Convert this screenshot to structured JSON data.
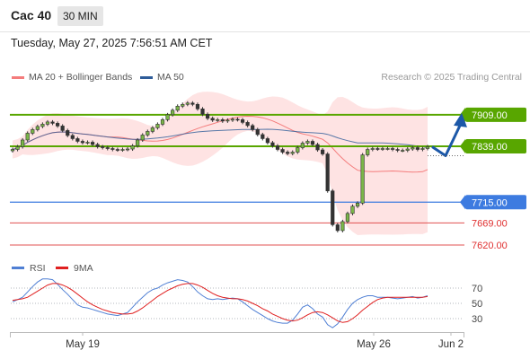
{
  "header": {
    "symbol": "Cac 40",
    "timeframe": "30 MIN"
  },
  "date_line": "Tuesday, May 27, 2025 7:56:51 AM CET",
  "legend": {
    "bb": {
      "label": "MA 20 + Bollinger Bands",
      "color": "#f47c7c"
    },
    "ma50": {
      "label": "MA 50",
      "color": "#2e5c99"
    },
    "credit": "Research © 2025 Trading Central"
  },
  "rsi_legend": {
    "rsi": {
      "label": "RSI",
      "color": "#4f7fd4"
    },
    "ma": {
      "label": "9MA",
      "color": "#e02020"
    }
  },
  "chart_data": [
    {
      "type": "line",
      "subtype": "candlestick",
      "x_labels": [
        "May 19",
        "May 26",
        "Jun 2"
      ],
      "price_levels": [
        {
          "value": 7909.0,
          "label": "7909.00",
          "style": "resistance",
          "color": "#58a600"
        },
        {
          "value": 7839.0,
          "label": "7839.00",
          "style": "pivot",
          "color": "#58a600"
        },
        {
          "value": 7715.0,
          "label": "7715.00",
          "style": "support",
          "color": "#3d7be0"
        },
        {
          "value": 7669.0,
          "label": "7669.00",
          "style": "support2",
          "color": "#e05050"
        },
        {
          "value": 7620.0,
          "label": "7620.00",
          "style": "support3",
          "color": "#e05050"
        }
      ],
      "ylim": [
        7600,
        7990
      ],
      "close_series": [
        7832,
        7838,
        7853,
        7868,
        7876,
        7883,
        7888,
        7893,
        7890,
        7884,
        7874,
        7863,
        7856,
        7850,
        7847,
        7848,
        7843,
        7838,
        7836,
        7834,
        7832,
        7831,
        7832,
        7833,
        7840,
        7853,
        7864,
        7872,
        7880,
        7888,
        7898,
        7909,
        7919,
        7928,
        7932,
        7935,
        7932,
        7922,
        7910,
        7901,
        7897,
        7898,
        7895,
        7897,
        7899,
        7898,
        7892,
        7885,
        7876,
        7865,
        7856,
        7847,
        7840,
        7832,
        7826,
        7823,
        7826,
        7836,
        7846,
        7850,
        7843,
        7831,
        7822,
        7740,
        7665,
        7652,
        7672,
        7690,
        7706,
        7713,
        7820,
        7832,
        7834,
        7833,
        7834,
        7834,
        7832,
        7830,
        7830,
        7833,
        7836,
        7832,
        7834,
        7838
      ],
      "forecast": [
        7838,
        7818,
        7909
      ]
    },
    {
      "type": "line",
      "title": "RSI",
      "ylim": [
        10,
        90
      ],
      "reference_lines": [
        70,
        50,
        30
      ],
      "rsi_series": [
        52,
        55,
        58,
        65,
        72,
        78,
        82,
        82,
        81,
        75,
        68,
        62,
        55,
        48,
        45,
        44,
        42,
        40,
        38,
        36,
        35,
        34,
        36,
        38,
        45,
        52,
        58,
        64,
        68,
        70,
        74,
        77,
        79,
        81,
        80,
        78,
        72,
        65,
        60,
        56,
        55,
        56,
        55,
        56,
        57,
        56,
        52,
        47,
        42,
        38,
        34,
        30,
        27,
        25,
        24,
        24,
        28,
        36,
        45,
        48,
        43,
        36,
        32,
        22,
        18,
        23,
        32,
        42,
        50,
        55,
        58,
        60,
        60,
        58,
        58,
        58,
        57,
        56,
        57,
        58,
        59,
        57,
        58,
        60
      ],
      "ma_series": [
        54,
        55,
        56,
        58,
        62,
        66,
        70,
        74,
        76,
        76,
        74,
        71,
        67,
        62,
        57,
        52,
        48,
        45,
        42,
        40,
        38,
        37,
        36,
        36,
        37,
        40,
        44,
        49,
        54,
        59,
        63,
        67,
        70,
        73,
        75,
        76,
        76,
        74,
        71,
        67,
        63,
        60,
        58,
        57,
        56,
        56,
        55,
        53,
        50,
        47,
        43,
        40,
        36,
        33,
        30,
        28,
        27,
        28,
        31,
        35,
        38,
        39,
        38,
        35,
        31,
        27,
        25,
        26,
        30,
        35,
        41,
        46,
        51,
        55,
        57,
        58,
        58,
        58,
        58,
        58,
        58,
        58,
        58,
        59
      ]
    }
  ]
}
